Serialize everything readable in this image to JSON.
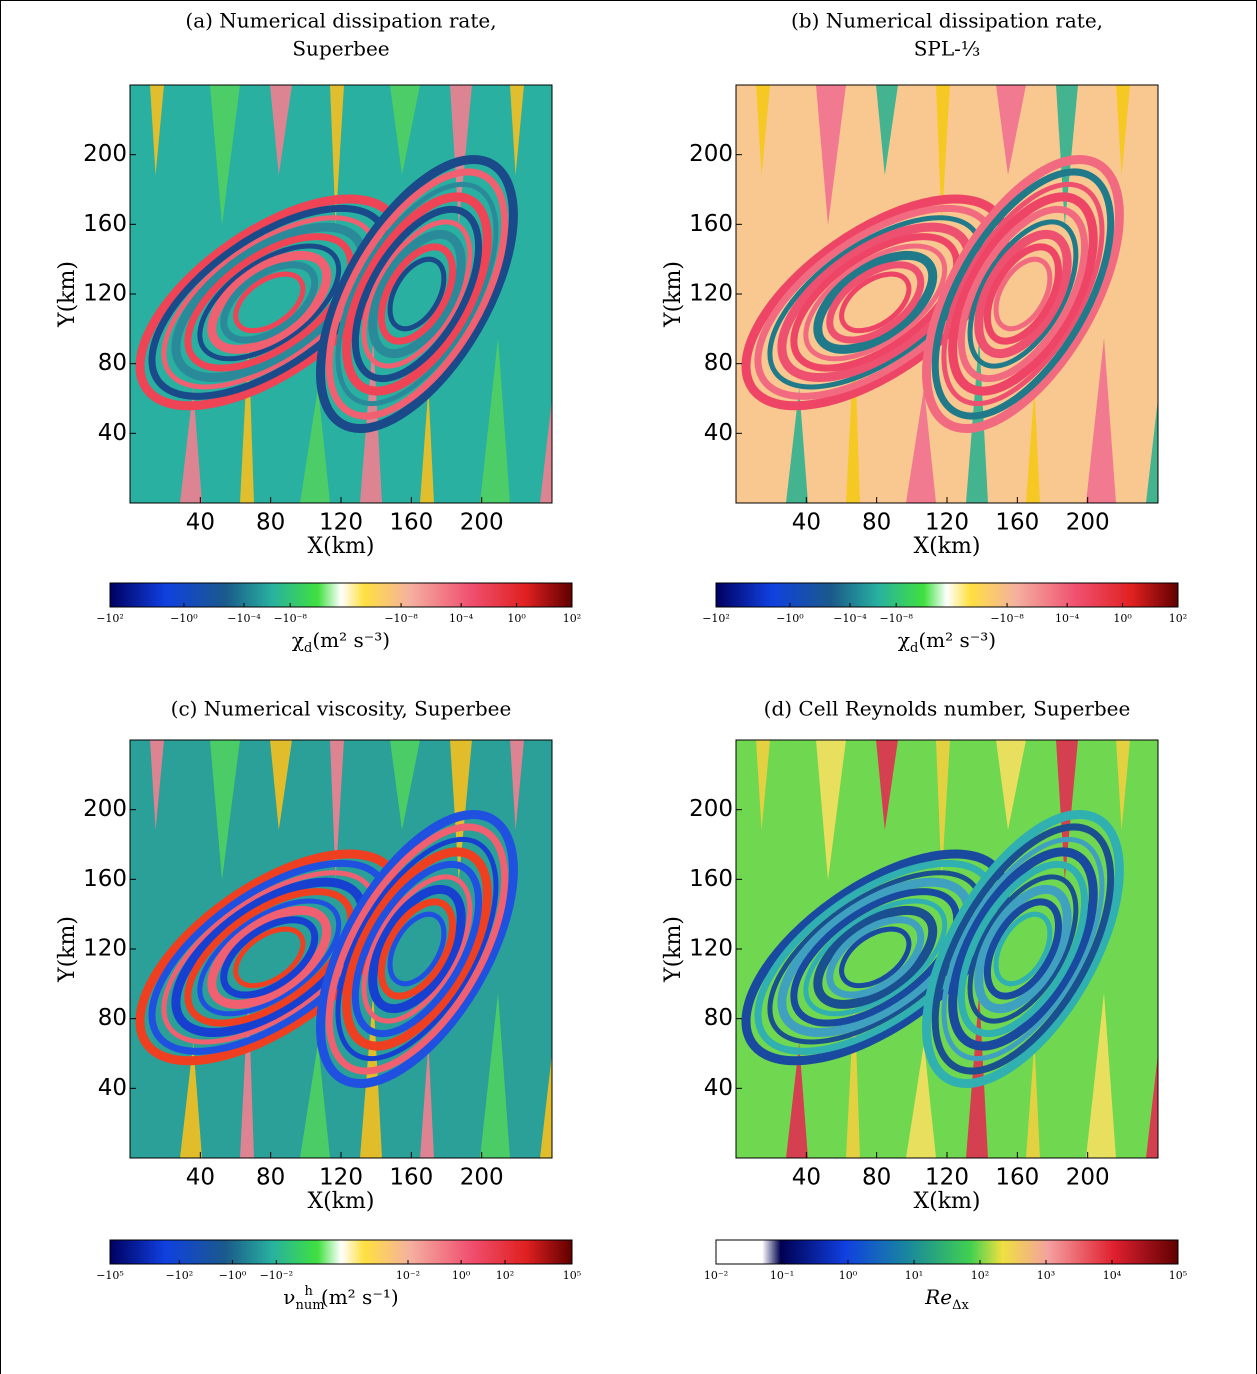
{
  "panels": [
    {
      "title": [
        "(a) Numerical dissipation rate,",
        "Superbee"
      ],
      "xlabel": "X(km)",
      "ylabel": "Y(km)",
      "xticks": [
        "40",
        "80",
        "120",
        "160",
        "200"
      ],
      "yticks": [
        "40",
        "80",
        "120",
        "160",
        "200"
      ],
      "colorbar": {
        "ticks": [
          "−10²",
          "−10⁰",
          "−10⁻⁴",
          "−10⁻⁸",
          "−10⁻⁸",
          "10⁻⁴",
          "10⁰",
          "10²"
        ],
        "label": {
          "main": "χ",
          "sub": "d",
          "unit": "(m² s⁻³)"
        }
      }
    },
    {
      "title": [
        "(b) Numerical dissipation rate,",
        "SPL-⅓"
      ],
      "xlabel": "X(km)",
      "ylabel": "Y(km)",
      "xticks": [
        "40",
        "80",
        "120",
        "160",
        "200"
      ],
      "yticks": [
        "40",
        "80",
        "120",
        "160",
        "200"
      ],
      "colorbar": {
        "ticks": [
          "−10²",
          "−10⁰",
          "−10⁻⁴",
          "−10⁻⁸",
          "−10⁻⁸",
          "10⁻⁴",
          "10⁰",
          "10²"
        ],
        "label": {
          "main": "χ",
          "sub": "d",
          "unit": "(m² s⁻³)"
        }
      }
    },
    {
      "title": [
        "(c) Numerical viscosity, Superbee"
      ],
      "xlabel": "X(km)",
      "ylabel": "Y(km)",
      "xticks": [
        "40",
        "80",
        "120",
        "160",
        "200"
      ],
      "yticks": [
        "40",
        "80",
        "120",
        "160",
        "200"
      ],
      "colorbar": {
        "ticks": [
          "−10⁵",
          "−10²",
          "−10⁰",
          "−10⁻²",
          "10⁻²",
          "10⁰",
          "10²",
          "10⁵"
        ],
        "label": {
          "main": "ν",
          "sub": "num",
          "sup": "h",
          "unit": "(m² s⁻¹)"
        }
      }
    },
    {
      "title": [
        "(d) Cell Reynolds number, Superbee"
      ],
      "xlabel": "X(km)",
      "ylabel": "Y(km)",
      "xticks": [
        "40",
        "80",
        "120",
        "160",
        "200"
      ],
      "yticks": [
        "40",
        "80",
        "120",
        "160",
        "200"
      ],
      "colorbar": {
        "ticks": [
          "10⁻²",
          "10⁻¹",
          "10⁰",
          "10¹",
          "10²",
          "10³",
          "10⁴",
          "10⁵"
        ],
        "label": {
          "main": "Re",
          "sub": "Δx",
          "italic": true
        }
      }
    }
  ]
}
